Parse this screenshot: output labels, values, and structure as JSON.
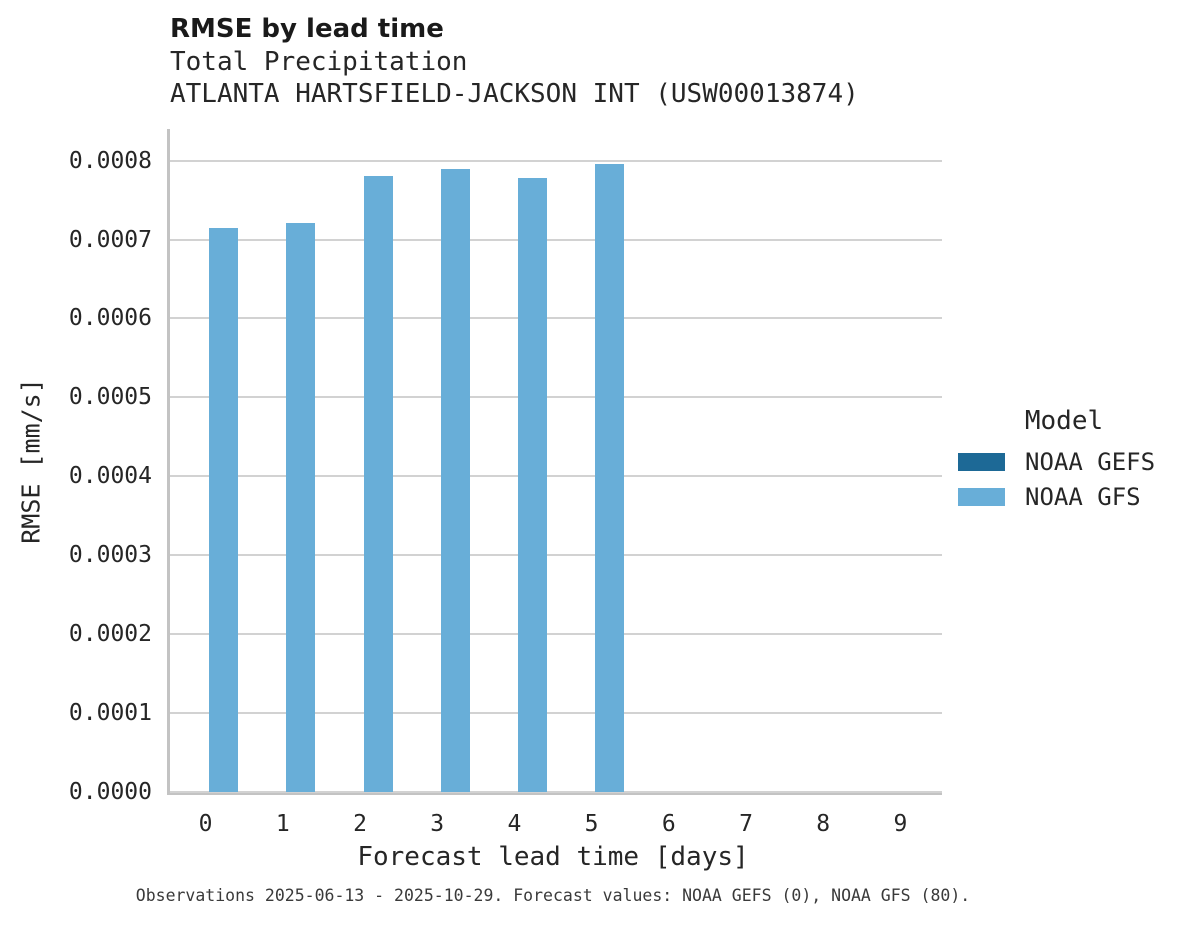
{
  "chart_data": {
    "type": "bar",
    "title": "RMSE by lead time",
    "subtitle": [
      "Total Precipitation",
      "ATLANTA HARTSFIELD-JACKSON INT (USW00013874)"
    ],
    "xlabel": "Forecast lead time [days]",
    "ylabel": "RMSE [mm/s]",
    "categories": [
      "0",
      "1",
      "2",
      "3",
      "4",
      "5",
      "6",
      "7",
      "8",
      "9"
    ],
    "series": [
      {
        "name": "NOAA GEFS",
        "color": "#1d6996",
        "values": [
          0,
          0,
          0,
          0,
          0,
          0,
          0,
          0,
          0,
          0
        ]
      },
      {
        "name": "NOAA GFS",
        "color": "#68aed8",
        "values": [
          0.000714,
          0.000721,
          0.000781,
          0.000789,
          0.000778,
          0.000796,
          0,
          0,
          0,
          0
        ]
      }
    ],
    "ylim": [
      0,
      0.00084
    ],
    "yticks": [
      0.0,
      0.0001,
      0.0002,
      0.0003,
      0.0004,
      0.0005,
      0.0006,
      0.0007,
      0.0008
    ],
    "ytick_labels": [
      "0.0000",
      "0.0001",
      "0.0002",
      "0.0003",
      "0.0004",
      "0.0005",
      "0.0006",
      "0.0007",
      "0.0008"
    ],
    "grid": "horizontal",
    "legend_title": "Model",
    "legend_position": "right",
    "caption": "Observations 2025-06-13 - 2025-10-29. Forecast values: NOAA GEFS (0), NOAA GFS (80).",
    "axis_color": "#c3c3c3",
    "gridline_color": "#d2d2d2"
  }
}
